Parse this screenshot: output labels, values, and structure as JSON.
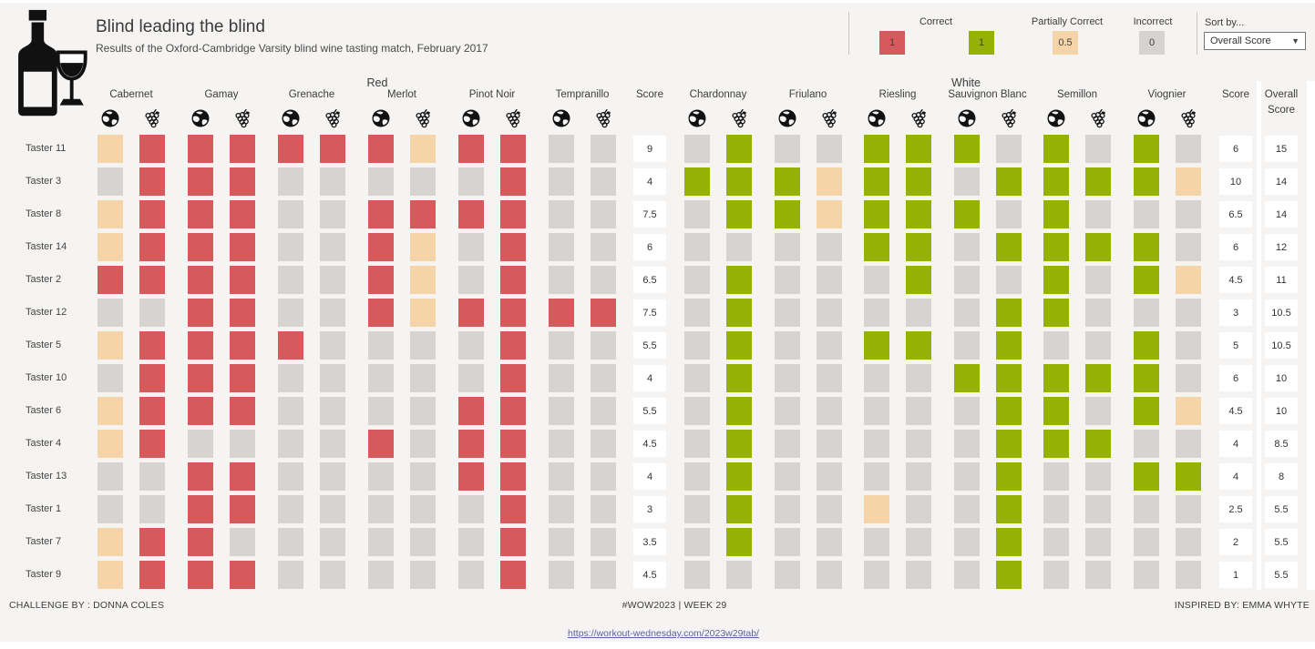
{
  "header": {
    "title": "Blind leading the blind",
    "subtitle": "Results of the Oxford-Cambridge Varsity blind wine tasting match, February 2017"
  },
  "legend": {
    "correct": {
      "label": "Correct",
      "red_value": "1",
      "green_value": "1"
    },
    "partially_correct": {
      "label": "Partially Correct",
      "value": "0.5"
    },
    "incorrect": {
      "label": "Incorrect",
      "value": "0"
    }
  },
  "sort_by": {
    "label": "Sort by...",
    "selected": "Overall Score"
  },
  "columns": {
    "red_group": "Red",
    "white_group": "White",
    "score": "Score",
    "overall_score": "Overall Score"
  },
  "icons": {
    "logo": "wine-bottle-and-glass-icon",
    "per_variety": [
      "globe-icon",
      "grapes-icon"
    ],
    "dropdown": "caret-down-icon"
  },
  "colors": {
    "background": "#f5f4f2",
    "correct_red": "#d65a5c",
    "correct_green": "#94b104",
    "partially_correct": "#f4d4a8",
    "incorrect": "#d5d4d2",
    "score_box": "#ffffff",
    "link": "#5c62a5"
  },
  "footer": {
    "challenge_by": "CHALLENGE BY : DONNA COLES",
    "center": "#WOW2023  |  WEEK 29",
    "inspired_by": "INSPIRED BY: EMMA WHYTE",
    "link": "https://workout-wednesday.com/2023w29tab/"
  },
  "chart_data": {
    "type": "heatmap",
    "title": "Blind leading the blind",
    "subtitle": "Results of the Oxford-Cambridge Varsity blind wine tasting match, February 2017",
    "cell_value_meaning": {
      "1": "Correct",
      "0.5": "Partially Correct",
      "0": "Incorrect"
    },
    "columns_per_variety": [
      "country",
      "grape variety"
    ],
    "red_varieties": [
      "Cabernet",
      "Gamay",
      "Grenache",
      "Merlot",
      "Pinot Noir",
      "Tempranillo"
    ],
    "white_varieties": [
      "Chardonnay",
      "Friulano",
      "Riesling",
      "Sauvignon Blanc",
      "Semillon",
      "Viognier"
    ],
    "rows": [
      {
        "taster": "Taster 11",
        "red": [
          0.5,
          1,
          1,
          1,
          1,
          1,
          1,
          0.5,
          1,
          1,
          0,
          0
        ],
        "red_score": 9,
        "white": [
          0,
          1,
          0,
          0,
          1,
          1,
          1,
          0,
          1,
          0,
          1,
          0
        ],
        "white_score": 6,
        "overall": 15
      },
      {
        "taster": "Taster 3",
        "red": [
          0,
          1,
          1,
          1,
          0,
          0,
          0,
          0,
          0,
          1,
          0,
          0
        ],
        "red_score": 4,
        "white": [
          1,
          1,
          1,
          0.5,
          1,
          1,
          0,
          1,
          1,
          1,
          1,
          0.5
        ],
        "white_score": 10,
        "overall": 14
      },
      {
        "taster": "Taster 8",
        "red": [
          0.5,
          1,
          1,
          1,
          0,
          0,
          1,
          1,
          1,
          1,
          0,
          0
        ],
        "red_score": 7.5,
        "white": [
          0,
          1,
          1,
          0.5,
          1,
          1,
          1,
          0,
          1,
          0,
          0,
          0
        ],
        "white_score": 6.5,
        "overall": 14
      },
      {
        "taster": "Taster 14",
        "red": [
          0.5,
          1,
          1,
          1,
          0,
          0,
          1,
          0.5,
          0,
          1,
          0,
          0
        ],
        "red_score": 6,
        "white": [
          0,
          0,
          0,
          0,
          1,
          1,
          0,
          1,
          1,
          1,
          1,
          0
        ],
        "white_score": 6,
        "overall": 12
      },
      {
        "taster": "Taster 2",
        "red": [
          1,
          1,
          1,
          1,
          0,
          0,
          1,
          0.5,
          0,
          1,
          0,
          0
        ],
        "red_score": 6.5,
        "white": [
          0,
          1,
          0,
          0,
          0,
          1,
          0,
          0,
          1,
          0,
          1,
          0.5
        ],
        "white_score": 4.5,
        "overall": 11
      },
      {
        "taster": "Taster 12",
        "red": [
          0,
          0,
          1,
          1,
          0,
          0,
          1,
          0.5,
          1,
          1,
          1,
          1
        ],
        "red_score": 7.5,
        "white": [
          0,
          1,
          0,
          0,
          0,
          0,
          0,
          1,
          1,
          0,
          0,
          0
        ],
        "white_score": 3,
        "overall": 10.5
      },
      {
        "taster": "Taster 5",
        "red": [
          0.5,
          1,
          1,
          1,
          1,
          0,
          0,
          0,
          0,
          1,
          0,
          0
        ],
        "red_score": 5.5,
        "white": [
          0,
          1,
          0,
          0,
          1,
          1,
          0,
          1,
          0,
          0,
          1,
          0
        ],
        "white_score": 5,
        "overall": 10.5
      },
      {
        "taster": "Taster 10",
        "red": [
          0,
          1,
          1,
          1,
          0,
          0,
          0,
          0,
          0,
          1,
          0,
          0
        ],
        "red_score": 4,
        "white": [
          0,
          1,
          0,
          0,
          0,
          0,
          1,
          1,
          1,
          1,
          1,
          0
        ],
        "white_score": 6,
        "overall": 10
      },
      {
        "taster": "Taster 6",
        "red": [
          0.5,
          1,
          1,
          1,
          0,
          0,
          0,
          0,
          1,
          1,
          0,
          0
        ],
        "red_score": 5.5,
        "white": [
          0,
          1,
          0,
          0,
          0,
          0,
          0,
          1,
          1,
          0,
          1,
          0.5
        ],
        "white_score": 4.5,
        "overall": 10
      },
      {
        "taster": "Taster 4",
        "red": [
          0.5,
          1,
          0,
          0,
          0,
          0,
          1,
          0,
          1,
          1,
          0,
          0
        ],
        "red_score": 4.5,
        "white": [
          0,
          1,
          0,
          0,
          0,
          0,
          0,
          1,
          1,
          1,
          0,
          0
        ],
        "white_score": 4,
        "overall": 8.5
      },
      {
        "taster": "Taster 13",
        "red": [
          0,
          0,
          1,
          1,
          0,
          0,
          0,
          0,
          1,
          1,
          0,
          0
        ],
        "red_score": 4,
        "white": [
          0,
          1,
          0,
          0,
          0,
          0,
          0,
          1,
          0,
          0,
          1,
          1
        ],
        "white_score": 4,
        "overall": 8
      },
      {
        "taster": "Taster 1",
        "red": [
          0,
          0,
          1,
          1,
          0,
          0,
          0,
          0,
          0,
          1,
          0,
          0
        ],
        "red_score": 3,
        "white": [
          0,
          1,
          0,
          0,
          0.5,
          0,
          0,
          1,
          0,
          0,
          0,
          0
        ],
        "white_score": 2.5,
        "overall": 5.5
      },
      {
        "taster": "Taster 7",
        "red": [
          0.5,
          1,
          1,
          0,
          0,
          0,
          0,
          0,
          0,
          1,
          0,
          0
        ],
        "red_score": 3.5,
        "white": [
          0,
          1,
          0,
          0,
          0,
          0,
          0,
          1,
          0,
          0,
          0,
          0
        ],
        "white_score": 2,
        "overall": 5.5
      },
      {
        "taster": "Taster 9",
        "red": [
          0.5,
          1,
          1,
          1,
          0,
          0,
          0,
          0,
          0,
          1,
          0,
          0
        ],
        "red_score": 4.5,
        "white": [
          0,
          0,
          0,
          0,
          0,
          0,
          0,
          1,
          0,
          0,
          0,
          0
        ],
        "white_score": 1,
        "overall": 5.5
      }
    ]
  }
}
